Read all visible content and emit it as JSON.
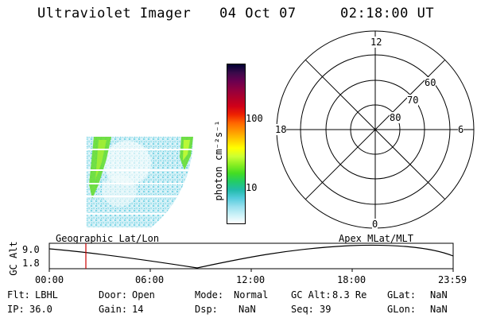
{
  "header": {
    "instrument": "Ultraviolet Imager",
    "date": "04 Oct 07",
    "time": "02:18:00 UT"
  },
  "colorbar": {
    "unit_label": "photon cm⁻²s⁻¹",
    "ticks": [
      "100",
      "10"
    ],
    "colors": [
      "#000033",
      "#3a0a4a",
      "#6a0050",
      "#900040",
      "#b0002a",
      "#d00018",
      "#ee2200",
      "#ff6600",
      "#ff9900",
      "#ffcc00",
      "#ffff00",
      "#ccff33",
      "#88ee22",
      "#44dd22",
      "#22cc66",
      "#22bbaa",
      "#55ccdd",
      "#99e0ee",
      "#ccf2f8",
      "#ffffff"
    ]
  },
  "polar": {
    "mlt_labels": {
      "top": "12",
      "right": "6",
      "bottom": "0",
      "left": "18"
    },
    "lat_labels": [
      "80",
      "70",
      "60"
    ]
  },
  "timeline": {
    "left_title": "Geographic Lat/Lon",
    "right_title": "Apex MLat/MLT",
    "y_axis_label": "GC Alt",
    "y_ticks": [
      "9.0",
      "1.8"
    ],
    "x_ticks": [
      "00:00",
      "06:00",
      "12:00",
      "18:00",
      "23:59"
    ]
  },
  "info": {
    "filter_label": "Flt:",
    "filter_value": "LBHL",
    "ip_label": "IP:",
    "ip_value": "36.0",
    "door_label": "Door:",
    "door_value": "Open",
    "gain_label": "Gain:",
    "gain_value": "14",
    "mode_label": "Mode:",
    "mode_value": "Normal",
    "dsp_label": "Dsp:",
    "dsp_value": "NaN",
    "gcalt_label": "GC Alt:",
    "gcalt_value": "8.3 Re",
    "seq_label": "Seq:",
    "seq_value": "39",
    "glat_label": "GLat:",
    "glat_value": "NaN",
    "glon_label": "GLon:",
    "glon_value": "NaN"
  },
  "accent_colors": {
    "cursor_line": "#cc0000"
  }
}
